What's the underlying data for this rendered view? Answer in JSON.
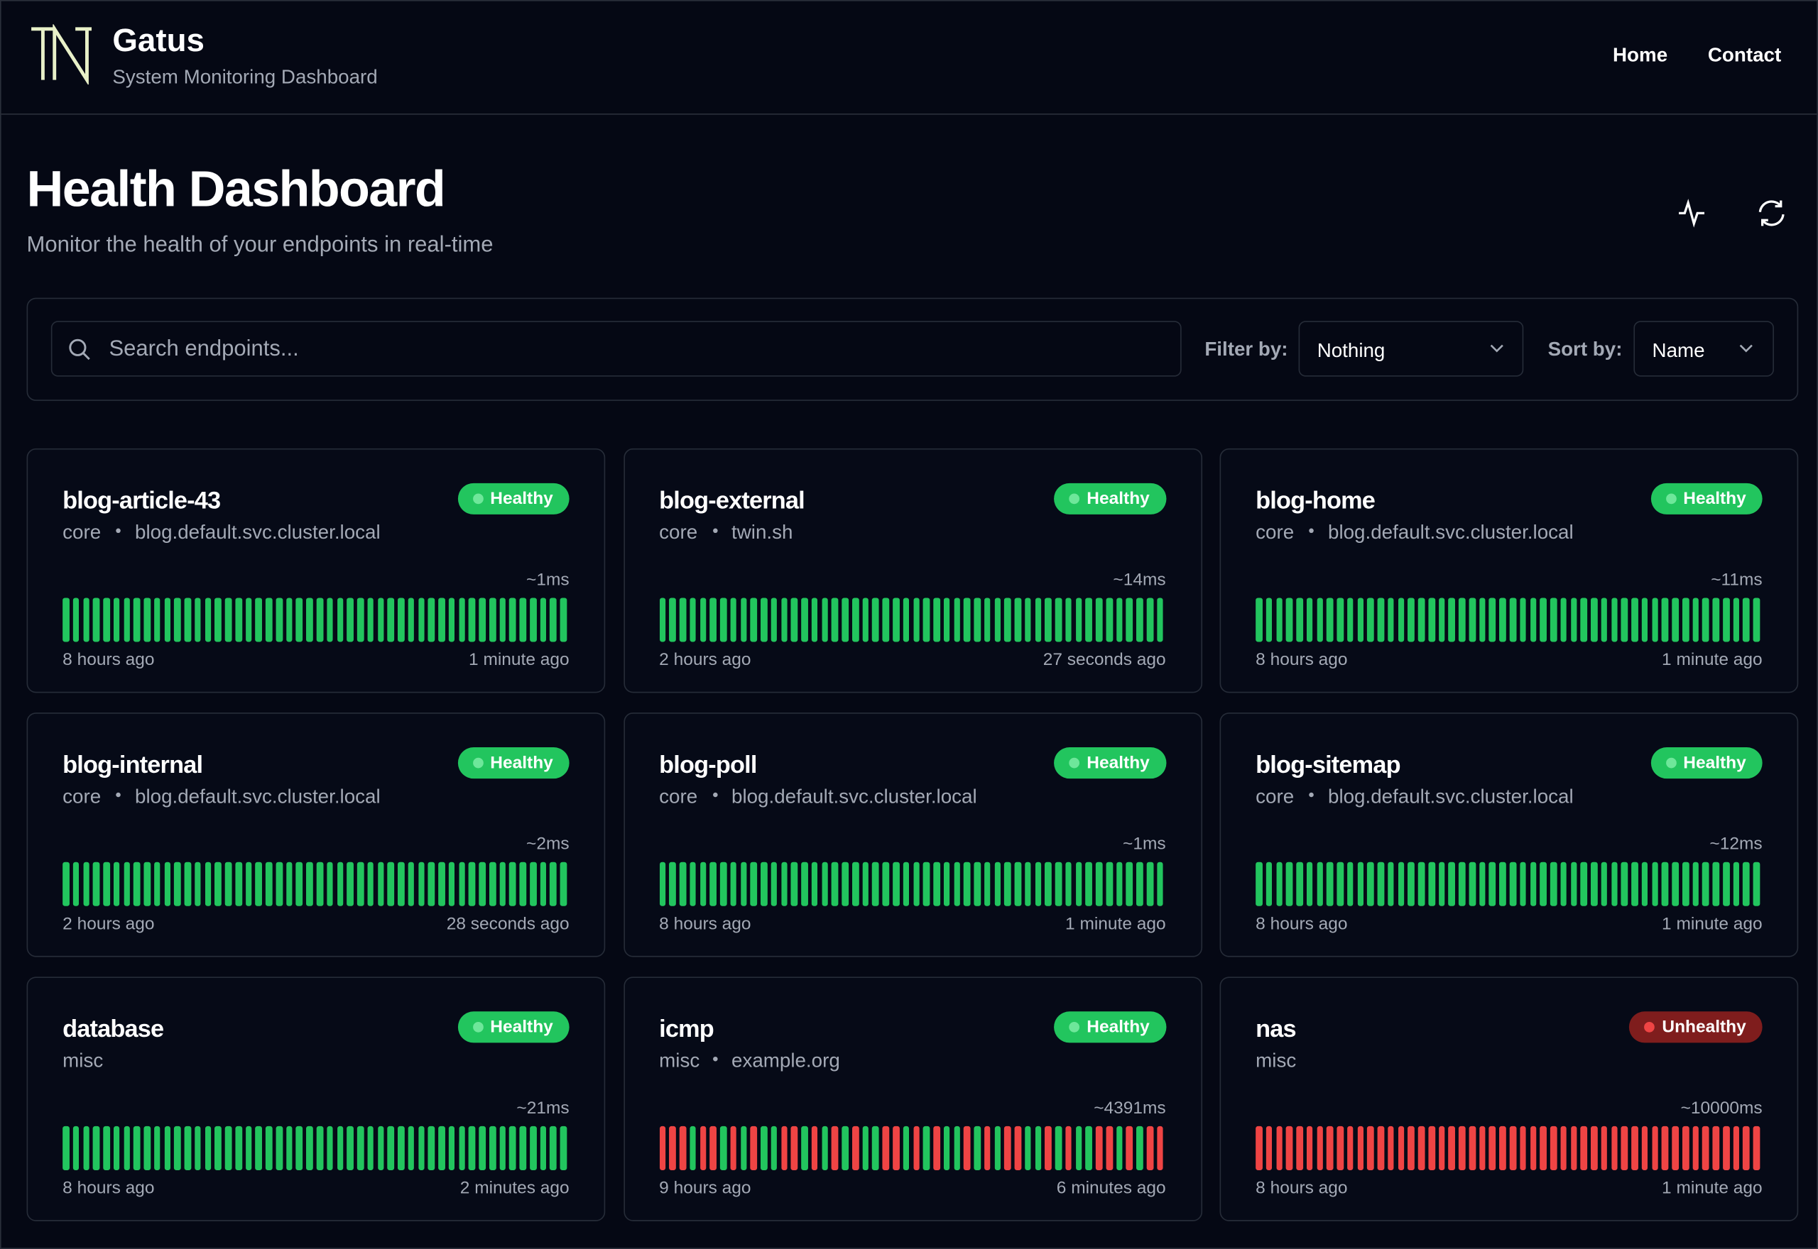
{
  "header": {
    "title": "Gatus",
    "subtitle": "System Monitoring Dashboard",
    "nav": [
      "Home",
      "Contact"
    ]
  },
  "page": {
    "title": "Health Dashboard",
    "subtitle": "Monitor the health of your endpoints in real-time"
  },
  "filters": {
    "search_placeholder": "Search endpoints...",
    "filter_label": "Filter by:",
    "filter_value": "Nothing",
    "sort_label": "Sort by:",
    "sort_value": "Name"
  },
  "endpoints": [
    {
      "name": "blog-article-43",
      "status": "Healthy",
      "group": "core",
      "hostname": "blog.default.svc.cluster.local",
      "response_time": "~1ms",
      "start": "8 hours ago",
      "end": "1 minute ago",
      "results": [
        1,
        1,
        1,
        1,
        1,
        1,
        1,
        1,
        1,
        1,
        1,
        1,
        1,
        1,
        1,
        1,
        1,
        1,
        1,
        1,
        1,
        1,
        1,
        1,
        1,
        1,
        1,
        1,
        1,
        1,
        1,
        1,
        1,
        1,
        1,
        1,
        1,
        1,
        1,
        1,
        1,
        1,
        1,
        1,
        1,
        1,
        1,
        1,
        1,
        1
      ]
    },
    {
      "name": "blog-external",
      "status": "Healthy",
      "group": "core",
      "hostname": "twin.sh",
      "response_time": "~14ms",
      "start": "2 hours ago",
      "end": "27 seconds ago",
      "results": [
        1,
        1,
        1,
        1,
        1,
        1,
        1,
        1,
        1,
        1,
        1,
        1,
        1,
        1,
        1,
        1,
        1,
        1,
        1,
        1,
        1,
        1,
        1,
        1,
        1,
        1,
        1,
        1,
        1,
        1,
        1,
        1,
        1,
        1,
        1,
        1,
        1,
        1,
        1,
        1,
        1,
        1,
        1,
        1,
        1,
        1,
        1,
        1,
        1,
        1
      ]
    },
    {
      "name": "blog-home",
      "status": "Healthy",
      "group": "core",
      "hostname": "blog.default.svc.cluster.local",
      "response_time": "~11ms",
      "start": "8 hours ago",
      "end": "1 minute ago",
      "results": [
        1,
        1,
        1,
        1,
        1,
        1,
        1,
        1,
        1,
        1,
        1,
        1,
        1,
        1,
        1,
        1,
        1,
        1,
        1,
        1,
        1,
        1,
        1,
        1,
        1,
        1,
        1,
        1,
        1,
        1,
        1,
        1,
        1,
        1,
        1,
        1,
        1,
        1,
        1,
        1,
        1,
        1,
        1,
        1,
        1,
        1,
        1,
        1,
        1,
        1
      ]
    },
    {
      "name": "blog-internal",
      "status": "Healthy",
      "group": "core",
      "hostname": "blog.default.svc.cluster.local",
      "response_time": "~2ms",
      "start": "2 hours ago",
      "end": "28 seconds ago",
      "results": [
        1,
        1,
        1,
        1,
        1,
        1,
        1,
        1,
        1,
        1,
        1,
        1,
        1,
        1,
        1,
        1,
        1,
        1,
        1,
        1,
        1,
        1,
        1,
        1,
        1,
        1,
        1,
        1,
        1,
        1,
        1,
        1,
        1,
        1,
        1,
        1,
        1,
        1,
        1,
        1,
        1,
        1,
        1,
        1,
        1,
        1,
        1,
        1,
        1,
        1
      ]
    },
    {
      "name": "blog-poll",
      "status": "Healthy",
      "group": "core",
      "hostname": "blog.default.svc.cluster.local",
      "response_time": "~1ms",
      "start": "8 hours ago",
      "end": "1 minute ago",
      "results": [
        1,
        1,
        1,
        1,
        1,
        1,
        1,
        1,
        1,
        1,
        1,
        1,
        1,
        1,
        1,
        1,
        1,
        1,
        1,
        1,
        1,
        1,
        1,
        1,
        1,
        1,
        1,
        1,
        1,
        1,
        1,
        1,
        1,
        1,
        1,
        1,
        1,
        1,
        1,
        1,
        1,
        1,
        1,
        1,
        1,
        1,
        1,
        1,
        1,
        1
      ]
    },
    {
      "name": "blog-sitemap",
      "status": "Healthy",
      "group": "core",
      "hostname": "blog.default.svc.cluster.local",
      "response_time": "~12ms",
      "start": "8 hours ago",
      "end": "1 minute ago",
      "results": [
        1,
        1,
        1,
        1,
        1,
        1,
        1,
        1,
        1,
        1,
        1,
        1,
        1,
        1,
        1,
        1,
        1,
        1,
        1,
        1,
        1,
        1,
        1,
        1,
        1,
        1,
        1,
        1,
        1,
        1,
        1,
        1,
        1,
        1,
        1,
        1,
        1,
        1,
        1,
        1,
        1,
        1,
        1,
        1,
        1,
        1,
        1,
        1,
        1,
        1
      ]
    },
    {
      "name": "database",
      "status": "Healthy",
      "group": "misc",
      "response_time": "~21ms",
      "start": "8 hours ago",
      "end": "2 minutes ago",
      "results": [
        1,
        1,
        1,
        1,
        1,
        1,
        1,
        1,
        1,
        1,
        1,
        1,
        1,
        1,
        1,
        1,
        1,
        1,
        1,
        1,
        1,
        1,
        1,
        1,
        1,
        1,
        1,
        1,
        1,
        1,
        1,
        1,
        1,
        1,
        1,
        1,
        1,
        1,
        1,
        1,
        1,
        1,
        1,
        1,
        1,
        1,
        1,
        1,
        1,
        1
      ]
    },
    {
      "name": "icmp",
      "status": "Healthy",
      "group": "misc",
      "hostname": "example.org",
      "response_time": "~4391ms",
      "start": "9 hours ago",
      "end": "6 minutes ago",
      "results": [
        0,
        0,
        0,
        1,
        0,
        0,
        1,
        0,
        1,
        0,
        1,
        1,
        0,
        0,
        1,
        0,
        1,
        0,
        1,
        0,
        1,
        1,
        0,
        0,
        1,
        0,
        1,
        0,
        1,
        1,
        0,
        1,
        0,
        1,
        0,
        0,
        1,
        1,
        0,
        1,
        0,
        1,
        1,
        0,
        0,
        1,
        0,
        1,
        0,
        0
      ]
    },
    {
      "name": "nas",
      "status": "Unhealthy",
      "group": "misc",
      "response_time": "~10000ms",
      "start": "8 hours ago",
      "end": "1 minute ago",
      "results": [
        0,
        0,
        0,
        0,
        0,
        0,
        0,
        0,
        0,
        0,
        0,
        0,
        0,
        0,
        0,
        0,
        0,
        0,
        0,
        0,
        0,
        0,
        0,
        0,
        0,
        0,
        0,
        0,
        0,
        0,
        0,
        0,
        0,
        0,
        0,
        0,
        0,
        0,
        0,
        0,
        0,
        0,
        0,
        0,
        0,
        0,
        0,
        0,
        0,
        0
      ]
    }
  ]
}
